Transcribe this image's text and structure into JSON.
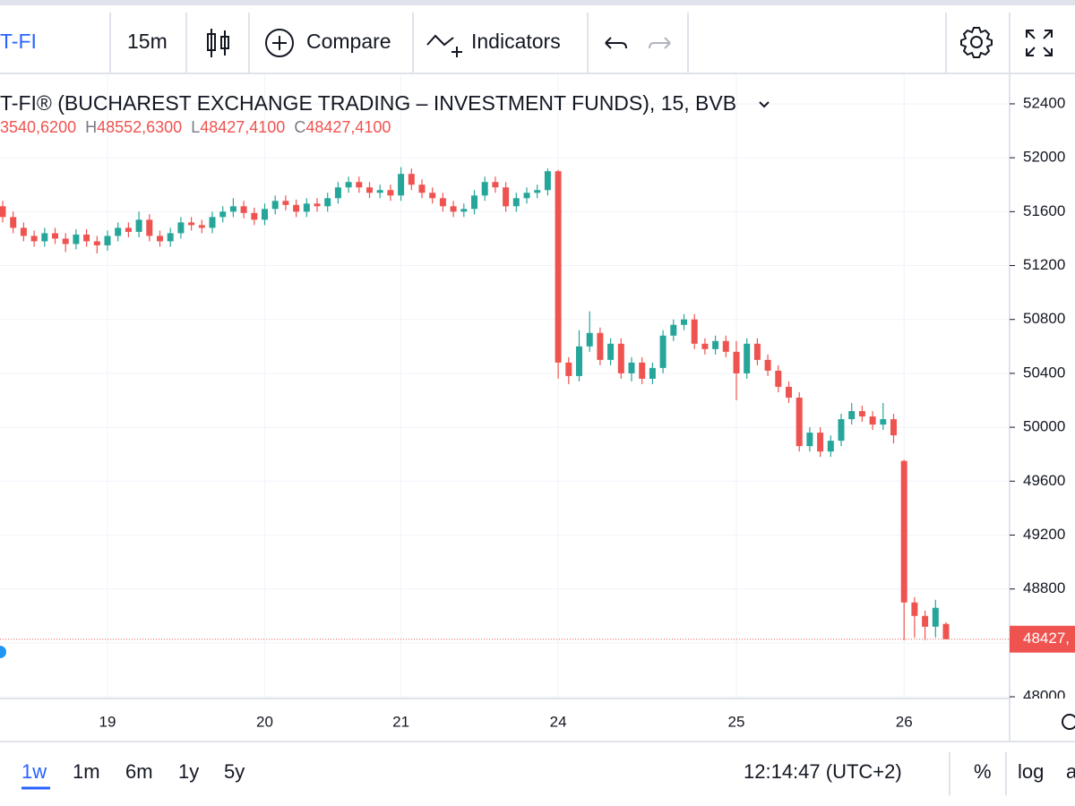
{
  "toolbar": {
    "symbol": "T-FI",
    "interval": "15m",
    "compare": "Compare",
    "indicators": "Indicators"
  },
  "bottom_bar": {
    "ranges": [
      "1w",
      "1m",
      "6m",
      "1y",
      "5y"
    ],
    "clock": "12:14:47 (UTC+2)",
    "percent": "%",
    "log": "log",
    "auto": "a"
  },
  "chart_data": {
    "type": "candlestick",
    "title": "T-FI® (BUCHAREST EXCHANGE TRADING – INVESTMENT FUNDS), 15, BVB",
    "legend": [
      {
        "value": "3540,6200"
      },
      {
        "label": "H",
        "value": "48552,6300"
      },
      {
        "label": "L",
        "value": "48427,4100"
      },
      {
        "label": "C",
        "value": "48427,4100"
      }
    ],
    "up_color": "#26a69a",
    "down_color": "#ef5350",
    "grid": true,
    "categories": [
      null,
      null,
      null,
      null,
      null,
      null,
      null,
      null,
      null,
      null,
      "19",
      null,
      null,
      null,
      null,
      null,
      null,
      null,
      null,
      null,
      null,
      null,
      null,
      null,
      null,
      "20",
      null,
      null,
      null,
      null,
      null,
      null,
      null,
      null,
      null,
      null,
      null,
      null,
      "21",
      null,
      null,
      null,
      null,
      null,
      null,
      null,
      null,
      null,
      null,
      null,
      null,
      null,
      null,
      "24",
      null,
      null,
      null,
      null,
      null,
      null,
      null,
      null,
      null,
      null,
      null,
      null,
      null,
      null,
      null,
      null,
      "25",
      null,
      null,
      null,
      null,
      null,
      null,
      null,
      null,
      null,
      null,
      null,
      null,
      null,
      null,
      null,
      "26",
      null,
      null,
      null,
      null
    ],
    "open": [
      51640,
      51560,
      51480,
      51420,
      51380,
      51440,
      51400,
      51360,
      51430,
      51380,
      51350,
      51420,
      51480,
      51450,
      51540,
      51420,
      51380,
      51440,
      51520,
      51500,
      51480,
      51560,
      51600,
      51640,
      51590,
      51540,
      51620,
      51680,
      51650,
      51600,
      51660,
      51640,
      51700,
      51780,
      51820,
      51780,
      51740,
      51760,
      51720,
      51880,
      51800,
      51740,
      51700,
      51640,
      51600,
      51620,
      51720,
      51820,
      51780,
      51640,
      51700,
      51740,
      51760,
      51900,
      50480,
      50380,
      50600,
      50700,
      50500,
      50620,
      50400,
      50480,
      50360,
      50440,
      50680,
      50760,
      50800,
      50620,
      50580,
      50640,
      50560,
      50400,
      50620,
      50500,
      50420,
      50300,
      50220,
      49860,
      49960,
      49820,
      49900,
      50060,
      50120,
      50080,
      50020,
      50060,
      49750,
      48700,
      48600,
      48520,
      48540.62
    ],
    "high": [
      51680,
      51600,
      51520,
      51460,
      51480,
      51480,
      51440,
      51470,
      51470,
      51420,
      51460,
      51520,
      51520,
      51600,
      51580,
      51460,
      51480,
      51560,
      51560,
      51540,
      51600,
      51640,
      51700,
      51680,
      51630,
      51660,
      51720,
      51720,
      51690,
      51700,
      51700,
      51740,
      51820,
      51860,
      51860,
      51820,
      51800,
      51800,
      51930,
      51920,
      51840,
      51780,
      51740,
      51680,
      51660,
      51760,
      51860,
      51860,
      51820,
      51740,
      51780,
      51800,
      51920,
      51910,
      50520,
      50720,
      50860,
      50740,
      50660,
      50660,
      50520,
      50520,
      50480,
      50720,
      50800,
      50840,
      50840,
      50660,
      50680,
      50680,
      50640,
      50660,
      50660,
      50540,
      50460,
      50340,
      50260,
      50000,
      50000,
      49940,
      50100,
      50180,
      50160,
      50120,
      50180,
      50100,
      49760,
      48740,
      48640,
      48720,
      48552.63
    ],
    "low": [
      51520,
      51440,
      51380,
      51340,
      51340,
      51360,
      51300,
      51320,
      51340,
      51290,
      51310,
      51380,
      51410,
      51410,
      51380,
      51340,
      51340,
      51400,
      51460,
      51440,
      51440,
      51520,
      51560,
      51550,
      51500,
      51500,
      51580,
      51610,
      51560,
      51560,
      51600,
      51600,
      51660,
      51740,
      51740,
      51700,
      51700,
      51680,
      51680,
      51760,
      51700,
      51660,
      51600,
      51560,
      51560,
      51580,
      51680,
      51740,
      51600,
      51600,
      51660,
      51700,
      51720,
      50360,
      50320,
      50340,
      50560,
      50460,
      50460,
      50360,
      50340,
      50320,
      50320,
      50400,
      50640,
      50720,
      50580,
      50540,
      50540,
      50520,
      50200,
      50360,
      50460,
      50380,
      50260,
      50180,
      49820,
      49820,
      49780,
      49780,
      49860,
      50020,
      50040,
      49980,
      49980,
      49880,
      48420,
      48440,
      48420,
      48440,
      48427.41
    ],
    "close": [
      51560,
      51480,
      51420,
      51380,
      51440,
      51400,
      51360,
      51430,
      51380,
      51350,
      51420,
      51480,
      51450,
      51540,
      51420,
      51380,
      51440,
      51520,
      51500,
      51480,
      51560,
      51600,
      51640,
      51590,
      51540,
      51620,
      51680,
      51650,
      51600,
      51660,
      51640,
      51700,
      51780,
      51820,
      51780,
      51740,
      51760,
      51720,
      51880,
      51800,
      51740,
      51700,
      51640,
      51600,
      51620,
      51720,
      51820,
      51780,
      51640,
      51700,
      51740,
      51760,
      51900,
      50480,
      50380,
      50600,
      50700,
      50500,
      50620,
      50400,
      50480,
      50360,
      50440,
      50680,
      50760,
      50800,
      50620,
      50580,
      50640,
      50560,
      50400,
      50620,
      50500,
      50420,
      50300,
      50220,
      49860,
      49960,
      49820,
      49900,
      50060,
      50120,
      50080,
      50020,
      50060,
      49940,
      48700,
      48600,
      48520,
      48660,
      48427.41
    ],
    "last_price": 48427.41,
    "last_price_label": "48427,",
    "ylim": [
      47987,
      52619
    ],
    "yticks": [
      48000,
      48400,
      48800,
      49200,
      49600,
      50000,
      50400,
      50800,
      51200,
      51600,
      52000,
      52400
    ]
  }
}
